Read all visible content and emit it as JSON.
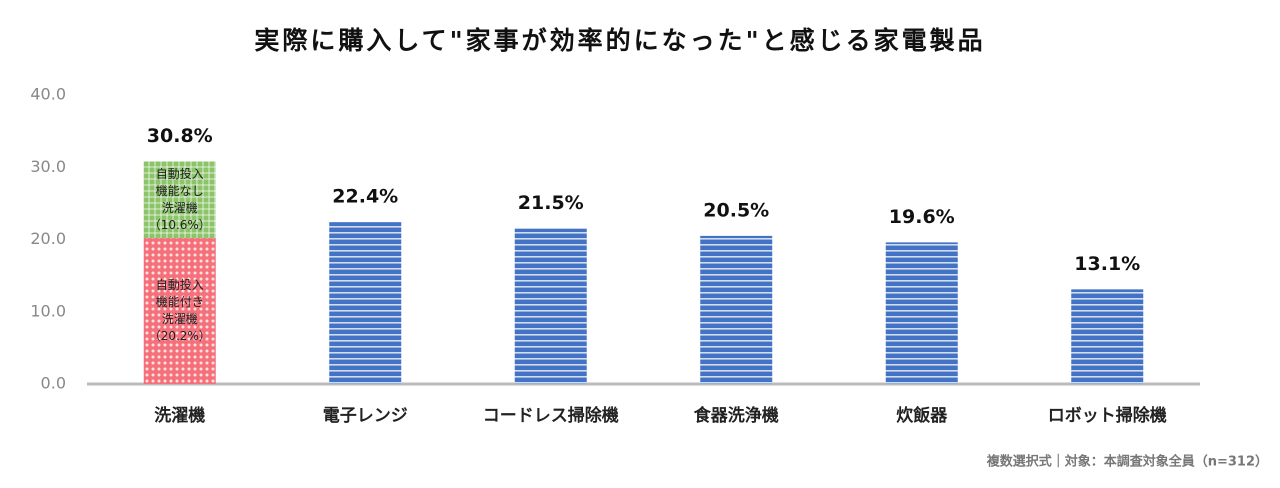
{
  "chart_data": {
    "type": "bar",
    "title": "実際に購入して\"家事が効率的になった\"と感じる家電製品",
    "categories": [
      "洗濯機",
      "電子レンジ",
      "コードレス掃除機",
      "食器洗浄機",
      "炊飯器",
      "ロボット掃除機"
    ],
    "values": [
      30.8,
      22.4,
      21.5,
      20.5,
      19.6,
      13.1
    ],
    "value_labels": [
      "30.8%",
      "22.4%",
      "21.5%",
      "20.5%",
      "19.6%",
      "13.1%"
    ],
    "color": "#4472c4",
    "stack": [
      {
        "lines": [
          "自動投入",
          "機能付き",
          "洗濯機"
        ],
        "value": 20.2,
        "value_label": "（20.2%）",
        "color": "#f4707a"
      },
      {
        "lines": [
          "自動投入",
          "機能なし",
          "洗濯機"
        ],
        "value": 10.6,
        "value_label": "（10.6%）",
        "color": "#8cc46a"
      }
    ],
    "ylim": [
      0,
      40
    ],
    "yticks": [
      {
        "value": 0,
        "label": "0.0"
      },
      {
        "value": 10,
        "label": "10.0"
      },
      {
        "value": 20,
        "label": "20.0"
      },
      {
        "value": 30,
        "label": "30.0"
      },
      {
        "value": 40,
        "label": "40.0"
      }
    ],
    "footnote": "複数選択式｜対象：本調査対象全員（n=312）"
  }
}
